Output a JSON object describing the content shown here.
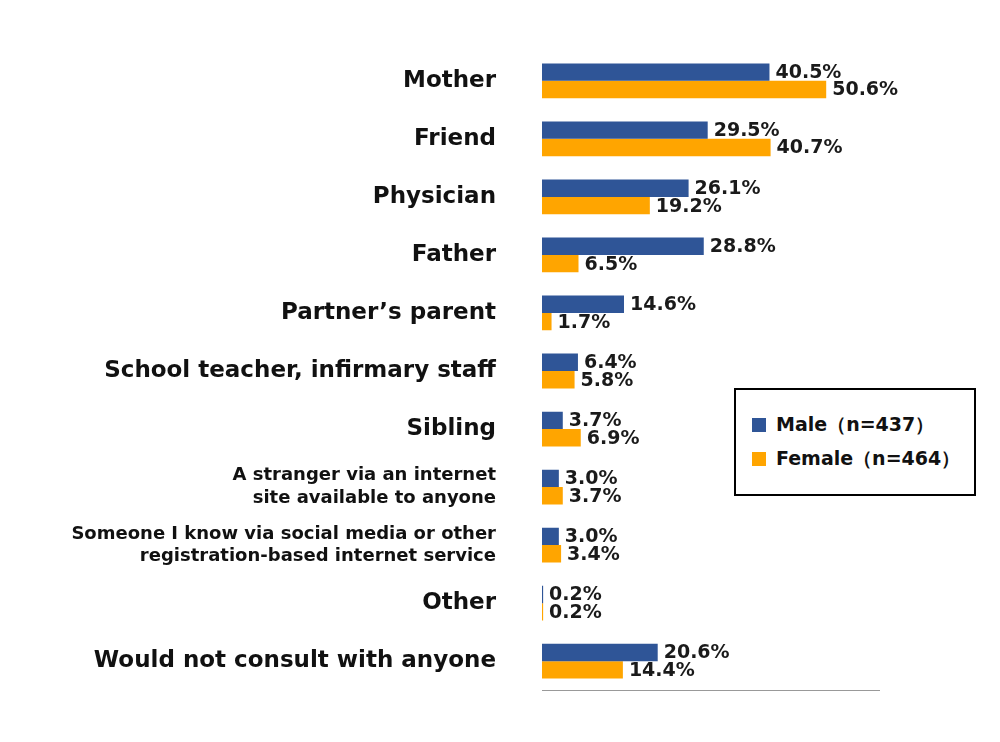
{
  "chart_data": {
    "type": "bar",
    "orientation": "horizontal",
    "categories": [
      "Mother",
      "Friend",
      "Physician",
      "Father",
      "Partner’s parent",
      "School teacher, infirmary staff",
      "Sibling",
      [
        "A stranger via an internet",
        "site available to anyone"
      ],
      [
        "Someone I know via social media or other",
        "registration-based internet service"
      ],
      "Other",
      "Would not consult with anyone"
    ],
    "series": [
      {
        "name": "Male（n=437）",
        "color": "#2f5597",
        "values": [
          40.5,
          29.5,
          26.1,
          28.8,
          14.6,
          6.4,
          3.7,
          3.0,
          3.0,
          0.2,
          20.6
        ],
        "value_labels": [
          "40.5%",
          "29.5%",
          "26.1%",
          "28.8%",
          "14.6%",
          "6.4%",
          "3.7%",
          "3.0%",
          "3.0%",
          "0.2%",
          "20.6%"
        ]
      },
      {
        "name": "Female（n=464）",
        "color": "#ffa500",
        "values": [
          50.6,
          40.7,
          19.2,
          6.5,
          1.7,
          5.8,
          6.9,
          3.7,
          3.4,
          0.2,
          14.4
        ],
        "value_labels": [
          "50.6%",
          "40.7%",
          "19.2%",
          "6.5%",
          "1.7%",
          "5.8%",
          "6.9%",
          "3.7%",
          "3.4%",
          "0.2%",
          "14.4%"
        ]
      }
    ],
    "xlim": [
      0,
      60
    ],
    "data_labels": true,
    "tick_labels": "y",
    "grid": false,
    "legend": "right"
  }
}
